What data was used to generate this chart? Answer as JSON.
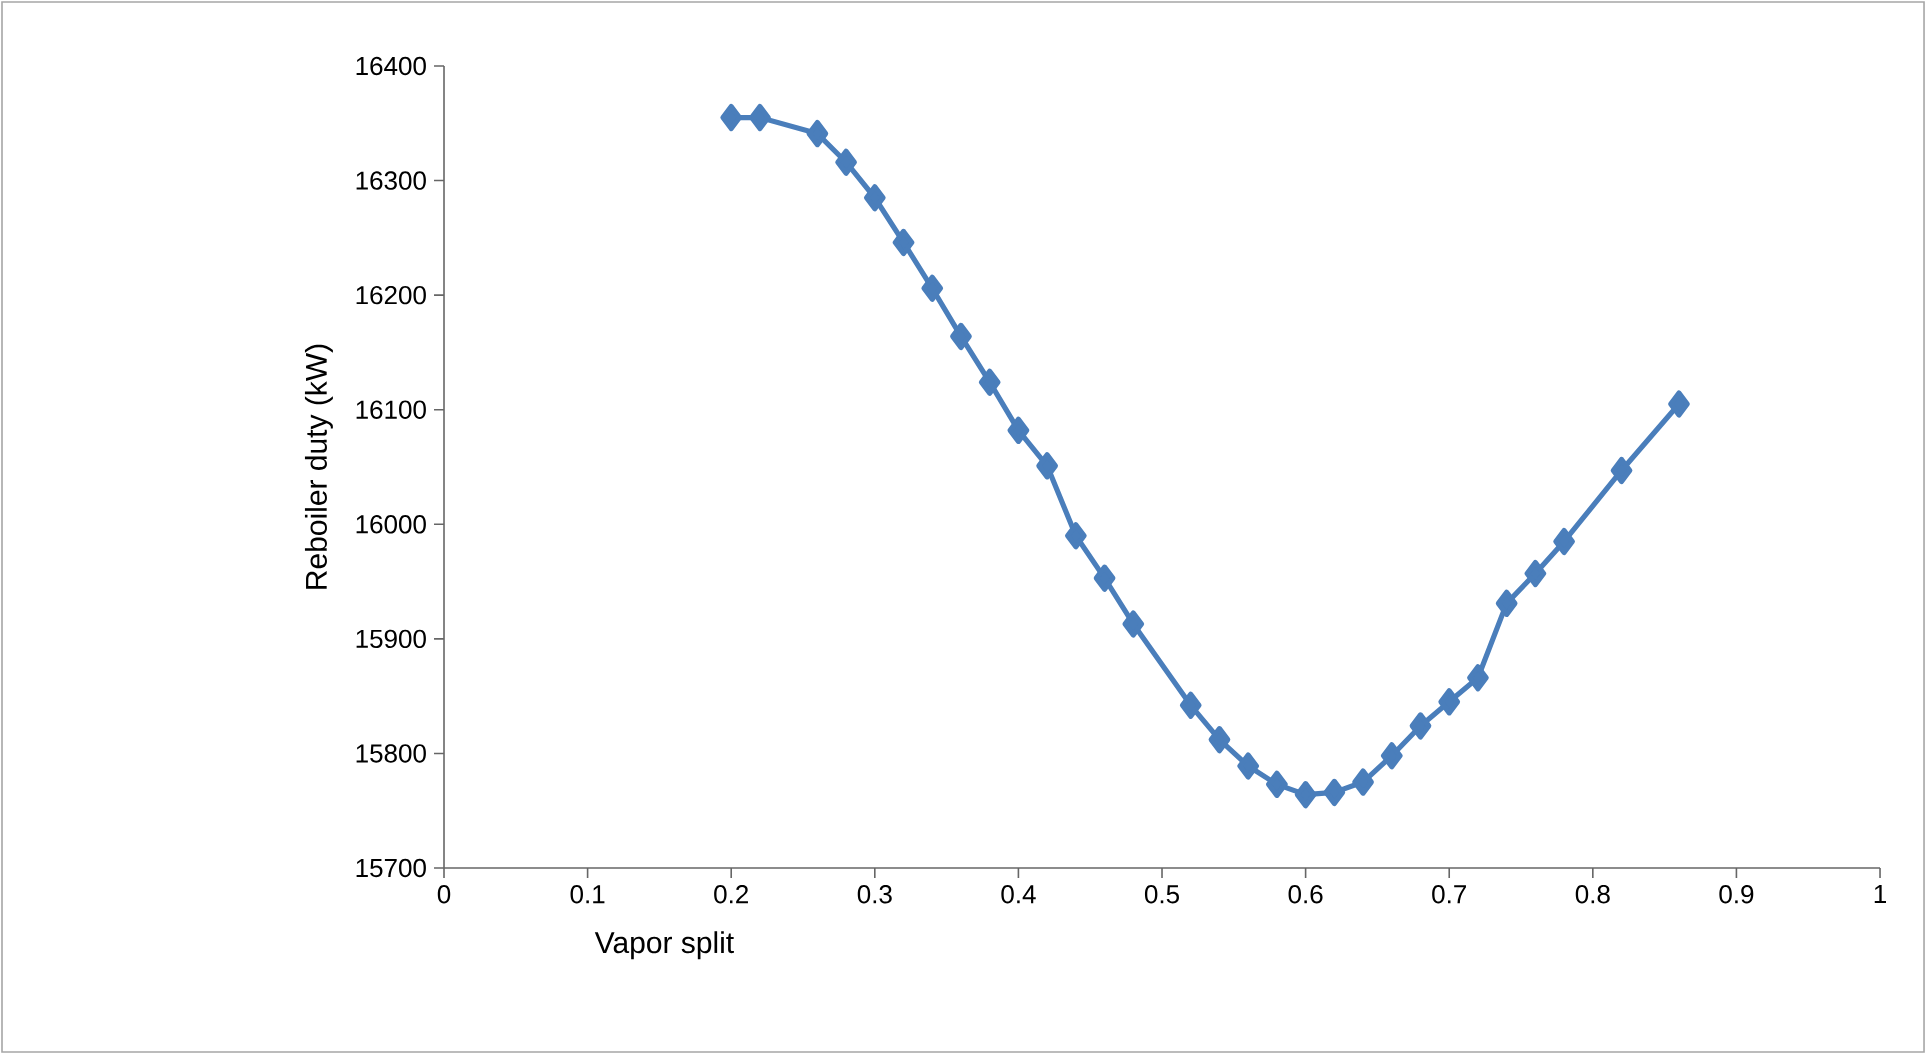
{
  "chart_data": {
    "type": "line",
    "xlabel": "Vapor split",
    "ylabel": "Reboiler duty (kW)",
    "x": [
      0.2,
      0.22,
      0.26,
      0.28,
      0.3,
      0.32,
      0.34,
      0.36,
      0.38,
      0.4,
      0.42,
      0.44,
      0.46,
      0.48,
      0.52,
      0.54,
      0.56,
      0.58,
      0.6,
      0.62,
      0.64,
      0.66,
      0.68,
      0.7,
      0.72,
      0.74,
      0.76,
      0.78,
      0.82,
      0.86
    ],
    "values": [
      16355,
      16355,
      16341,
      16316,
      16285,
      16246,
      16206,
      16164,
      16124,
      16082,
      16051,
      15990,
      15953,
      15913,
      15842,
      15812,
      15789,
      15773,
      15764,
      15766,
      15775,
      15798,
      15824,
      15845,
      15866,
      15931,
      15957,
      15985,
      16047,
      16105
    ],
    "color": "#4a7ebb",
    "marker": "diamond",
    "line_style": "solid",
    "xlim": [
      0,
      1
    ],
    "xticks": [
      0,
      0.1,
      0.2,
      0.3,
      0.4,
      0.5,
      0.6,
      0.7,
      0.8,
      0.9,
      1
    ],
    "ylim": [
      15700,
      16400
    ],
    "yticks": [
      15700,
      15800,
      15900,
      16000,
      16100,
      16200,
      16300,
      16400
    ]
  }
}
